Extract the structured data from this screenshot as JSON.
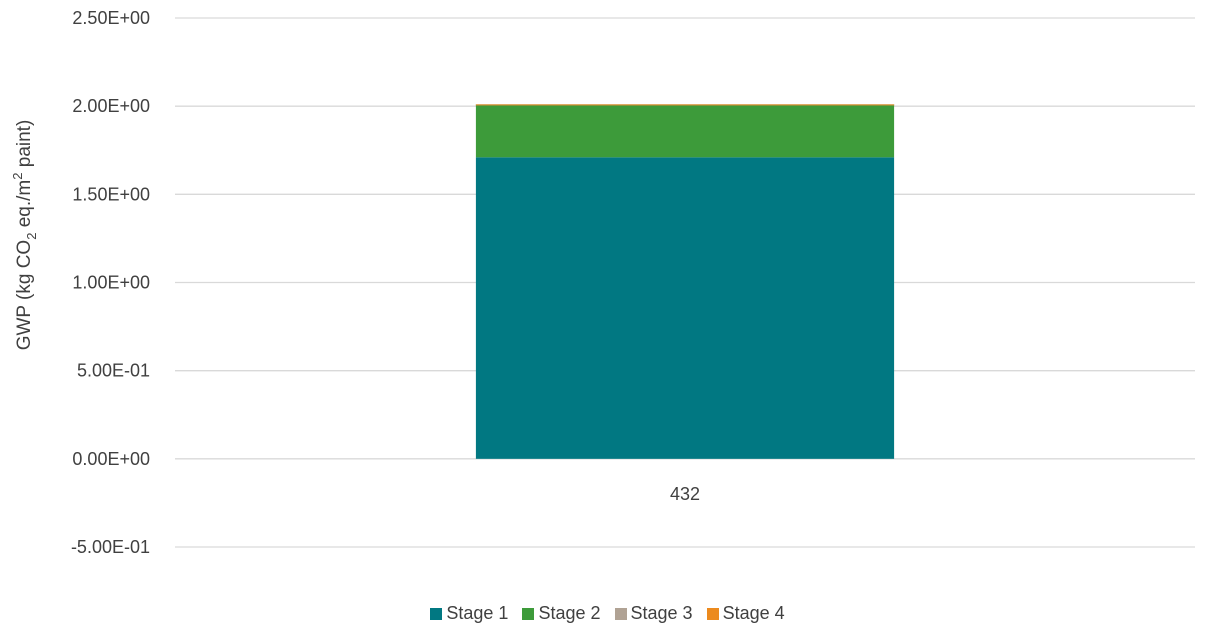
{
  "chart_data": {
    "type": "bar",
    "stacked": true,
    "categories": [
      "432"
    ],
    "series": [
      {
        "name": "Stage 1",
        "values": [
          1.71
        ],
        "color": "#017882"
      },
      {
        "name": "Stage 2",
        "values": [
          0.3
        ],
        "color": "#3d9b3a"
      },
      {
        "name": "Stage 3",
        "values": [
          0.0
        ],
        "color": "#b0a294"
      },
      {
        "name": "Stage 4",
        "values": [
          0.0
        ],
        "color": "#ec8a1e"
      }
    ],
    "ylim": [
      -0.5,
      2.5
    ],
    "yticks": [
      "2.50E+00",
      "2.00E+00",
      "1.50E+00",
      "1.00E+00",
      "5.00E-01",
      "0.00E+00",
      "-5.00E-01"
    ],
    "ytick_values": [
      2.5,
      2.0,
      1.5,
      1.0,
      0.5,
      0.0,
      -0.5
    ],
    "ylabel": {
      "prefix": "GWP (kg CO",
      "subscript": "2",
      "middle": " eq./m",
      "superscript": "2",
      "suffix": " paint)"
    },
    "grid": true,
    "legend_position": "bottom"
  }
}
